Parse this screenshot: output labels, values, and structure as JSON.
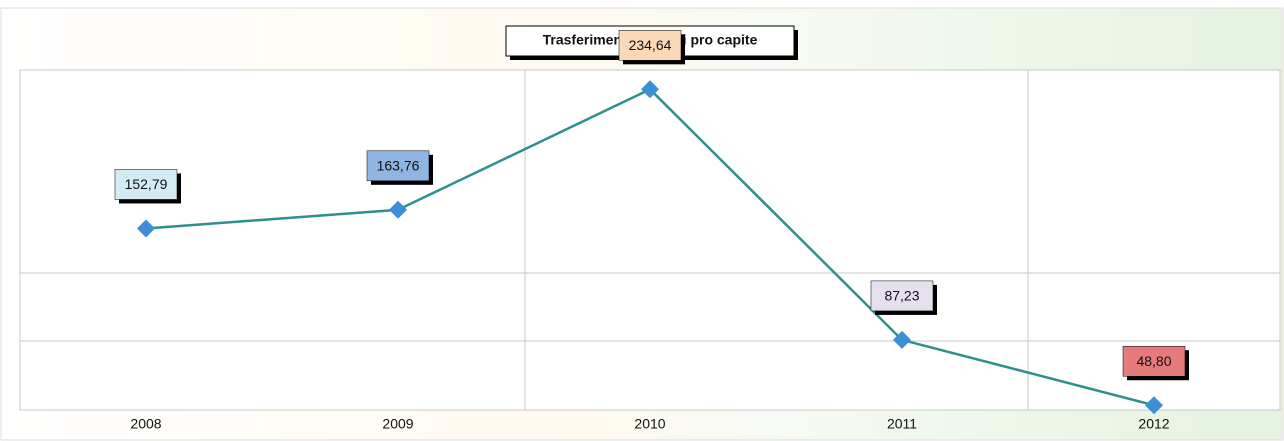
{
  "chart_data": {
    "type": "line",
    "title": "Trasferimenti correnti pro capite",
    "categories": [
      "2008",
      "2009",
      "2010",
      "2011",
      "2012"
    ],
    "series": [
      {
        "name": "Trasferimenti correnti pro capite",
        "color": "#2f8f8f",
        "marker_color": "#3b8fd6",
        "values": [
          152.79,
          163.76,
          234.64,
          87.23,
          48.8
        ],
        "value_labels": [
          "152,79",
          "163,76",
          "234,64",
          "87,23",
          "48,80"
        ],
        "label_colors": [
          "#d3ebf3",
          "#8fb6e3",
          "#fbd8b8",
          "#e6e0ee",
          "#e77b7b"
        ]
      }
    ],
    "ylim": [
      46,
      246
    ]
  }
}
